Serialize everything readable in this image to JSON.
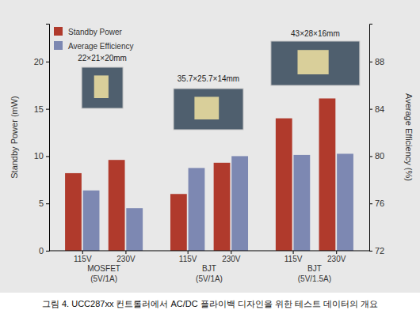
{
  "chart_data": {
    "type": "bar",
    "categories": [
      "115V",
      "230V",
      "115V",
      "230V",
      "115V",
      "230V"
    ],
    "groups": [
      {
        "label": [
          "MOSFET",
          "(5V/1A)"
        ],
        "annotation": "22×21×20mm"
      },
      {
        "label": [
          "BJT",
          "(5V/1A)"
        ],
        "annotation": "35.7×25.7×14mm"
      },
      {
        "label": [
          "BJT",
          "(5V/1.5A)"
        ],
        "annotation": "43×28×16mm"
      }
    ],
    "series": [
      {
        "name": "Standby Power",
        "color": "#b03a2c",
        "values": [
          8.2,
          9.6,
          6.0,
          9.3,
          14.0,
          16.1
        ]
      },
      {
        "name": "Average Efficiency",
        "color": "#7d88b2",
        "axis": "y2",
        "values": [
          77.1,
          75.6,
          79.0,
          80.0,
          80.1,
          80.2
        ]
      }
    ],
    "y_label": "Standby Power (mW)",
    "y2_label": "Average Efficiency (%)",
    "ylim": [
      0,
      24
    ],
    "yticks": [
      0,
      5,
      10,
      15,
      20
    ],
    "y2lim": [
      72,
      91.2
    ],
    "y2ticks": [
      72,
      76,
      80,
      84,
      88
    ],
    "legend": "upper left",
    "caption": "그림 4. UCC287xx 컨트롤러에서 AC/DC 플라이백 디자인을 위한 테스트 데이터의 개요"
  }
}
